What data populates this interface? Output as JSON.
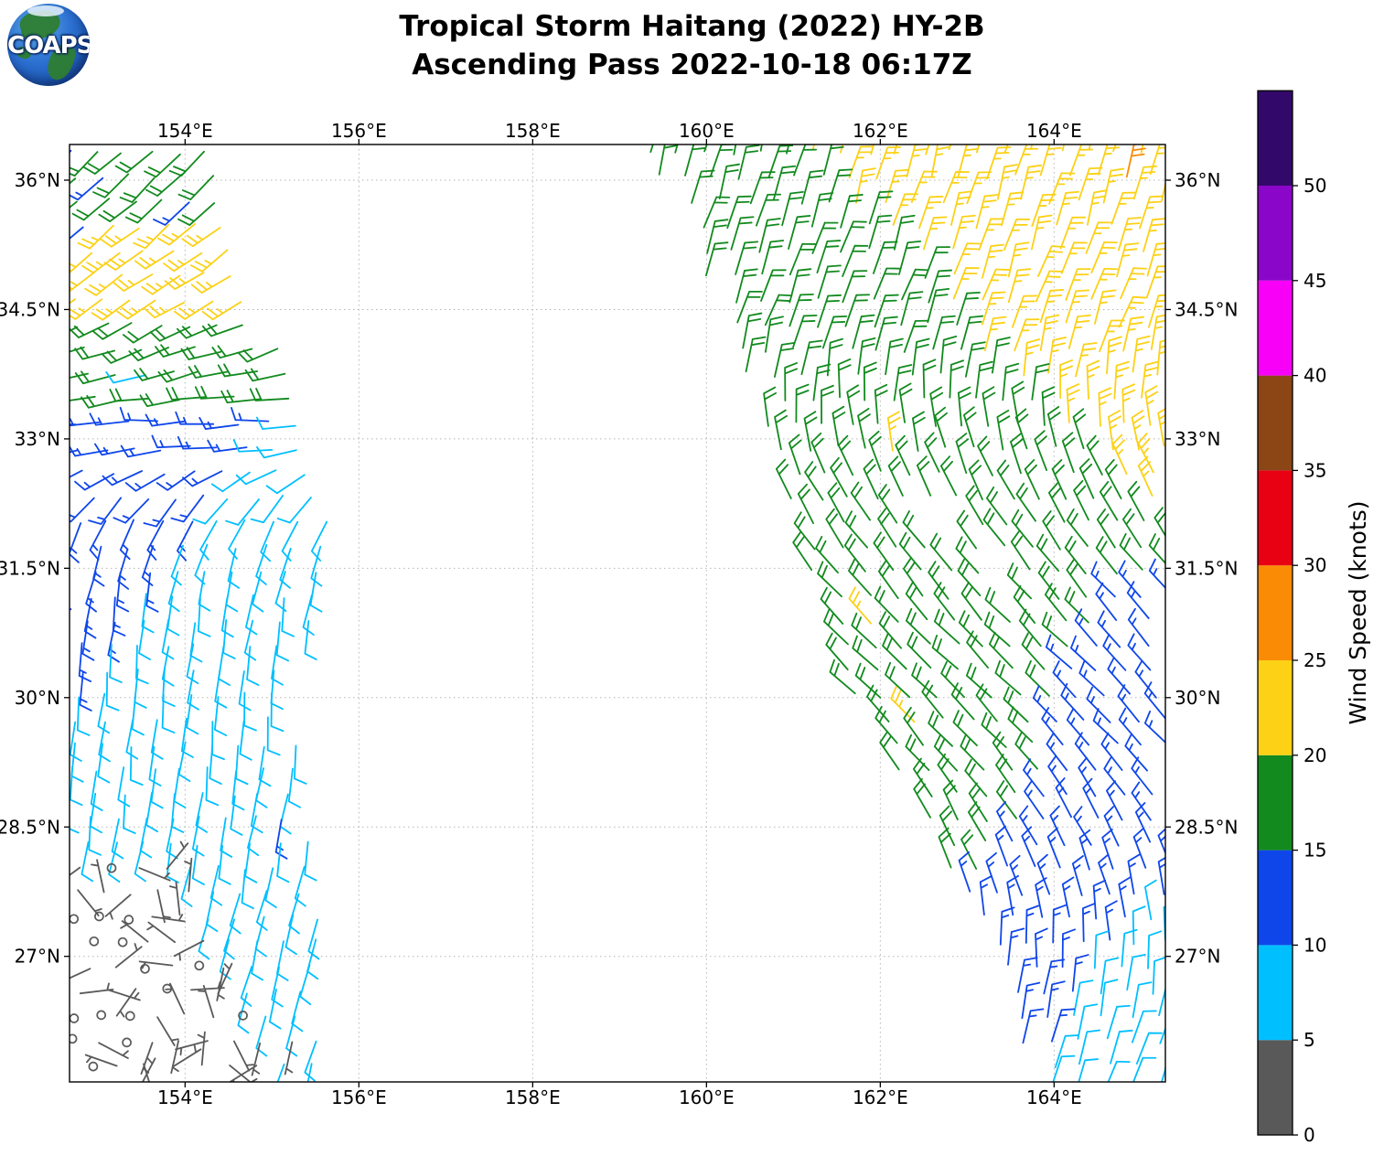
{
  "title": {
    "line1": "Tropical Storm Haitang (2022) HY-2B",
    "line2": "Ascending Pass 2022-10-18 06:17Z"
  },
  "logo": {
    "text": "COAPS"
  },
  "colorbar": {
    "label": "Wind Speed (knots)",
    "ticks": [
      {
        "value": 0,
        "label": "0"
      },
      {
        "value": 5,
        "label": "5"
      },
      {
        "value": 10,
        "label": "10"
      },
      {
        "value": 15,
        "label": "15"
      },
      {
        "value": 20,
        "label": "20"
      },
      {
        "value": 25,
        "label": "25"
      },
      {
        "value": 30,
        "label": "30"
      },
      {
        "value": 35,
        "label": "35"
      },
      {
        "value": 40,
        "label": "40"
      },
      {
        "value": 45,
        "label": "45"
      },
      {
        "value": 50,
        "label": "50"
      }
    ],
    "segments": [
      {
        "from": 0,
        "to": 5,
        "color": "#595959"
      },
      {
        "from": 5,
        "to": 10,
        "color": "#00BFFF"
      },
      {
        "from": 10,
        "to": 15,
        "color": "#0F46EA"
      },
      {
        "from": 15,
        "to": 20,
        "color": "#128A1E"
      },
      {
        "from": 20,
        "to": 25,
        "color": "#FCD116"
      },
      {
        "from": 25,
        "to": 30,
        "color": "#FA8B05"
      },
      {
        "from": 30,
        "to": 35,
        "color": "#E80013"
      },
      {
        "from": 35,
        "to": 40,
        "color": "#8C4515"
      },
      {
        "from": 40,
        "to": 45,
        "color": "#F800F8"
      },
      {
        "from": 45,
        "to": 50,
        "color": "#8A06C8"
      },
      {
        "from": 50,
        "to": 55,
        "color": "#32096B"
      }
    ]
  },
  "map": {
    "lon_min": 152.67,
    "lon_max": 165.28,
    "lat_min": 25.54,
    "lat_max": 36.41,
    "grid_color": "#b5b5b5",
    "x_ticks": [
      {
        "lon": 154,
        "label": "154°E"
      },
      {
        "lon": 156,
        "label": "156°E"
      },
      {
        "lon": 158,
        "label": "158°E"
      },
      {
        "lon": 160,
        "label": "160°E"
      },
      {
        "lon": 162,
        "label": "162°E"
      },
      {
        "lon": 164,
        "label": "164°E"
      }
    ],
    "y_ticks": [
      {
        "lat": 36,
        "label": "36°N"
      },
      {
        "lat": 34.5,
        "label": "34.5°N"
      },
      {
        "lat": 33,
        "label": "33°N"
      },
      {
        "lat": 31.5,
        "label": "31.5°N"
      },
      {
        "lat": 30,
        "label": "30°N"
      },
      {
        "lat": 28.5,
        "label": "28.5°N"
      },
      {
        "lat": 27,
        "label": "27°N"
      }
    ]
  },
  "chart_data": {
    "type": "wind_barb_map",
    "units": "knots",
    "grid_on": true,
    "swaths": [
      {
        "id": "west-swath",
        "west_edge": [
          [
            36.41,
            152.55
          ],
          [
            25.54,
            152.55
          ]
        ],
        "east_edge": [
          [
            36.41,
            154.52
          ],
          [
            35.3,
            154.72
          ],
          [
            34.2,
            155.0
          ],
          [
            33.2,
            155.5
          ],
          [
            32.2,
            155.72
          ],
          [
            31.2,
            155.55
          ],
          [
            30.2,
            155.2
          ],
          [
            29.2,
            155.28
          ],
          [
            28.2,
            155.55
          ],
          [
            27.0,
            155.6
          ],
          [
            25.54,
            155.5
          ]
        ],
        "rotation_profile": [
          [
            36.41,
            -135
          ],
          [
            34.8,
            -125
          ],
          [
            33.6,
            -100
          ],
          [
            33.0,
            -90
          ],
          [
            32.2,
            -150
          ],
          [
            31.4,
            -170
          ],
          [
            30.3,
            -175
          ],
          [
            28.8,
            -172
          ],
          [
            27.6,
            -168
          ],
          [
            25.54,
            -165
          ]
        ],
        "flip_ticks_when_rotation_below": -145,
        "speed_rules": {
          "bands": [
            {
              "lat_min": 35.5,
              "speed": 17.5
            },
            {
              "lat_min": 34.55,
              "speed": 22.5
            },
            {
              "lat_min": 33.45,
              "speed": 17.5
            }
          ],
          "calm_zone": {
            "lat_max": 28.15,
            "east_boundary": [
              [
                28.15,
                153.95
              ],
              [
                25.54,
                155.05
              ]
            ],
            "speed": 2.5,
            "circle_fraction": 0.35,
            "random_direction": true
          },
          "cyan_blue_boundary": {
            "line": [
              [
                33.45,
                155.15
              ],
              [
                29.88,
                152.55
              ]
            ],
            "east_speed": 7.5,
            "west_speed": 12.5
          },
          "default_speed": 7.5
        }
      },
      {
        "id": "east-swath",
        "west_edge": [
          [
            36.41,
            159.25
          ],
          [
            35.44,
            159.87
          ],
          [
            34.38,
            160.29
          ],
          [
            33.32,
            160.76
          ],
          [
            32.26,
            161.08
          ],
          [
            31.2,
            161.39
          ],
          [
            30.14,
            161.76
          ],
          [
            29.08,
            162.29
          ],
          [
            28.02,
            162.82
          ],
          [
            26.95,
            163.34
          ],
          [
            25.89,
            163.77
          ],
          [
            25.54,
            163.92
          ]
        ],
        "east_edge": [
          [
            36.41,
            165.45
          ],
          [
            25.54,
            165.45
          ]
        ],
        "rotation_profile": [
          [
            36.41,
            15
          ],
          [
            34.3,
            20
          ],
          [
            33.4,
            2
          ],
          [
            32.4,
            -28
          ],
          [
            31.3,
            -40
          ],
          [
            30.2,
            -45
          ],
          [
            29.2,
            -40
          ],
          [
            28.2,
            -25
          ],
          [
            27.4,
            -8
          ],
          [
            26.6,
            8
          ],
          [
            25.54,
            22
          ]
        ],
        "speed_rules": {
          "yellow_east_boundary": {
            "line": [
              [
                36.41,
                161.05
              ],
              [
                35.0,
                162.45
              ],
              [
                33.8,
                163.35
              ],
              [
                33.3,
                163.95
              ],
              [
                32.3,
                164.95
              ],
              [
                31.9,
                165.7
              ]
            ],
            "lat_min": 31.9,
            "speed": 22.5
          },
          "cyan_east_boundary": {
            "line": [
              [
                27.9,
                165.5
              ],
              [
                27.3,
                164.75
              ],
              [
                26.7,
                164.3
              ],
              [
                26.2,
                164.05
              ],
              [
                25.54,
                163.85
              ]
            ],
            "lat_max": 27.9,
            "speed": 7.5
          },
          "blue_east_boundary": {
            "line": [
              [
                31.5,
                165.7
              ],
              [
                31.3,
                164.6
              ],
              [
                30.3,
                164.15
              ],
              [
                29.3,
                163.9
              ],
              [
                28.5,
                163.55
              ],
              [
                27.9,
                163.1
              ],
              [
                27.2,
                162.6
              ],
              [
                25.54,
                162.0
              ]
            ],
            "lat_max": 31.5,
            "speed": 12.5
          },
          "default_speed": 17.5
        }
      }
    ],
    "overrides": [
      {
        "lon": 152.82,
        "lat": 36.29,
        "speed": 12.5
      },
      {
        "lon": 153.18,
        "lat": 36.12,
        "speed": 12.5
      },
      {
        "lon": 154.02,
        "lat": 35.82,
        "speed": 12.5
      },
      {
        "lon": 152.75,
        "lat": 35.55,
        "speed": 12.5
      },
      {
        "lon": 153.69,
        "lat": 33.71,
        "speed": 7.5
      },
      {
        "lon": 155.0,
        "lat": 28.5,
        "speed": 12.5
      },
      {
        "lon": 154.87,
        "lat": 25.89,
        "speed": 2.5
      },
      {
        "lon": 155.2,
        "lat": 25.95,
        "speed": 2.5
      },
      {
        "lon": 164.95,
        "lat": 35.97,
        "speed": 27.5
      },
      {
        "lon": 165.15,
        "lat": 35.55,
        "speed": 27.5
      },
      {
        "lon": 162.29,
        "lat": 32.82,
        "speed": 22.5
      },
      {
        "lon": 161.94,
        "lat": 30.85,
        "speed": 22.5
      },
      {
        "lon": 162.34,
        "lat": 29.71,
        "speed": 22.5
      }
    ],
    "holes": [
      {
        "lon": 162.76,
        "lat": 31.9,
        "r": 26
      },
      {
        "lon": 163.45,
        "lat": 31.2,
        "r": 26
      }
    ],
    "jitter_seed": 12345
  }
}
